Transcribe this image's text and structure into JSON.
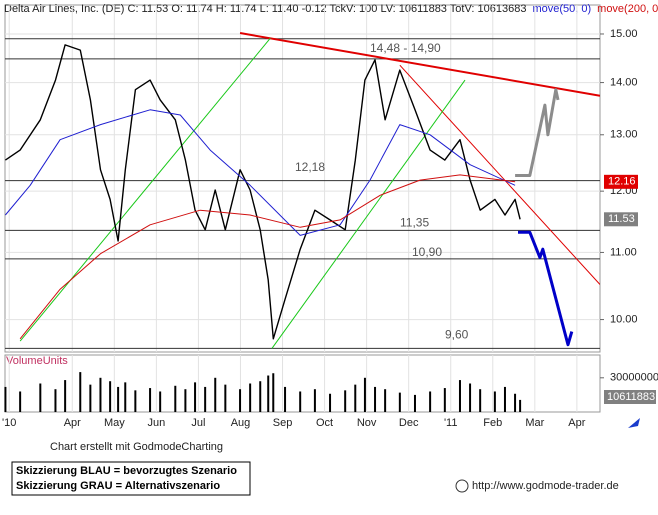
{
  "chart_data": [
    {
      "type": "line",
      "title": "Delta Air Lines, Inc. (DE)",
      "subtitle": "C: 11.53 O: 11.74 H: 11.74 L: 11.40 -0.12 TckV: 100 LV: 10611883 TotV: 10613683",
      "log_scale": true,
      "grid": true,
      "xlim": [
        -0.6,
        13.55
      ],
      "xticks": [
        {
          "value": -0.5,
          "label": "'10"
        },
        {
          "value": 1,
          "label": "Apr"
        },
        {
          "value": 2,
          "label": "May"
        },
        {
          "value": 3,
          "label": "Jun"
        },
        {
          "value": 4,
          "label": "Jul"
        },
        {
          "value": 5,
          "label": "Aug"
        },
        {
          "value": 6,
          "label": "Sep"
        },
        {
          "value": 7,
          "label": "Oct"
        },
        {
          "value": 8,
          "label": "Nov"
        },
        {
          "value": 9,
          "label": "Dec"
        },
        {
          "value": 10,
          "label": "'11"
        },
        {
          "value": 11,
          "label": "Feb"
        },
        {
          "value": 12,
          "label": "Mar"
        },
        {
          "value": 13,
          "label": "Apr"
        }
      ],
      "ylim": [
        9.55,
        15.63
      ],
      "yticks": [
        {
          "value": 10,
          "label": "10.00"
        },
        {
          "value": 11,
          "label": "11.00"
        },
        {
          "value": 12,
          "label": "12.00"
        },
        {
          "value": 13,
          "label": "13.00"
        },
        {
          "value": 14,
          "label": "14.00"
        },
        {
          "value": 15,
          "label": "15.00"
        }
      ],
      "series": [
        {
          "color": "#000000",
          "x": [
            -0.59,
            -0.24,
            0.24,
            0.6,
            0.83,
            1.19,
            1.43,
            1.67,
            1.9,
            2.09,
            2.26,
            2.5,
            2.85,
            3.09,
            3.45,
            3.69,
            3.92,
            4.16,
            4.4,
            4.64,
            4.99,
            5.23,
            5.47,
            5.66,
            5.78,
            6.06,
            6.42,
            6.77,
            7.13,
            7.49,
            7.73,
            7.96,
            8.2,
            8.44,
            8.79,
            9.15,
            9.51,
            9.86,
            10.22,
            10.46,
            10.7,
            11.05,
            11.29,
            11.53,
            11.65
          ],
          "values": [
            12.54,
            12.72,
            13.28,
            14.05,
            14.77,
            14.66,
            13.66,
            12.37,
            11.86,
            11.18,
            12.37,
            13.86,
            14.05,
            13.66,
            13.28,
            12.54,
            11.68,
            11.36,
            12.02,
            11.36,
            12.37,
            12.02,
            11.36,
            10.58,
            9.73,
            10.29,
            11.05,
            11.68,
            11.52,
            11.36,
            12.54,
            14.05,
            14.46,
            13.28,
            14.25,
            13.47,
            12.72,
            12.54,
            12.91,
            12.19,
            11.68,
            11.86,
            11.6,
            11.86,
            11.53
          ]
        },
        {
          "name": "move(50, 0)",
          "color": "#1f1fd0",
          "x": [
            -0.59,
            0,
            0.71,
            1.67,
            2.85,
            3.57,
            4.28,
            5.23,
            6.42,
            7.37,
            8.08,
            8.79,
            9.51,
            10.46,
            11.53
          ],
          "values": [
            11.6,
            12.1,
            12.91,
            13.19,
            13.47,
            13.37,
            12.72,
            12.1,
            11.27,
            11.44,
            12.19,
            13.19,
            13.0,
            12.46,
            12.1
          ]
        },
        {
          "name": "move(200, 0)",
          "color": "#d01010",
          "x": [
            -0.24,
            0.71,
            1.67,
            2.85,
            4.04,
            5.23,
            6.42,
            7.37,
            8.32,
            9.27,
            10.22,
            11.53
          ],
          "values": [
            9.73,
            10.44,
            10.98,
            11.44,
            11.68,
            11.6,
            11.4,
            11.52,
            11.93,
            12.19,
            12.28,
            12.16
          ]
        },
        {
          "name": "Skizzierung BLAU = bevorzugtes Szenario",
          "color": "#0000c8",
          "x": [
            11.6,
            11.88,
            12.12,
            12.19,
            12.79,
            12.88
          ],
          "values": [
            11.32,
            11.32,
            10.92,
            11.05,
            9.65,
            9.83
          ]
        },
        {
          "name": "Skizzierung GRAU = Alternativszenario",
          "color": "#8c8c8c",
          "x": [
            11.53,
            11.88,
            12.24,
            12.31,
            12.5,
            12.55
          ],
          "values": [
            12.27,
            12.27,
            13.56,
            13.0,
            13.86,
            13.66
          ]
        }
      ],
      "trendlines": [
        {
          "color": "#e00000",
          "x": [
            4.99,
            13.55
          ],
          "values": [
            15.02,
            13.74
          ]
        },
        {
          "color": "#e00000",
          "x": [
            8.79,
            13.55
          ],
          "values": [
            14.35,
            10.51
          ]
        },
        {
          "color": "#19c819",
          "x": [
            -0.24,
            5.71
          ],
          "values": [
            9.7,
            14.91
          ]
        },
        {
          "color": "#19c819",
          "x": [
            5.75,
            10.34
          ],
          "values": [
            9.6,
            14.05
          ]
        }
      ],
      "levels": [
        {
          "values": [
            14.48,
            14.9
          ],
          "label": "14,48 - 14,90"
        },
        {
          "values": [
            12.18
          ],
          "label": "12,18"
        },
        {
          "values": [
            11.35
          ],
          "label": "11,35"
        },
        {
          "values": [
            10.9
          ],
          "label": "10,90"
        },
        {
          "values": [
            9.6
          ],
          "label": "9,60"
        }
      ]
    },
    {
      "type": "bar",
      "title": "VolumeUnits",
      "color": "#000000",
      "ylim": [
        0,
        50000000
      ],
      "yticks": [
        30000000
      ],
      "x": [
        -0.59,
        -0.24,
        0.24,
        0.6,
        0.83,
        1.19,
        1.43,
        1.67,
        1.9,
        2.09,
        2.26,
        2.5,
        2.85,
        3.09,
        3.45,
        3.69,
        3.92,
        4.16,
        4.4,
        4.64,
        4.99,
        5.23,
        5.47,
        5.66,
        5.78,
        6.06,
        6.42,
        6.77,
        7.13,
        7.49,
        7.73,
        7.96,
        8.2,
        8.44,
        8.79,
        9.15,
        9.51,
        9.86,
        10.22,
        10.46,
        10.7,
        11.05,
        11.29,
        11.53,
        11.65
      ],
      "values": [
        22000000,
        18000000,
        25000000,
        20000000,
        28000000,
        35000000,
        24000000,
        30000000,
        27000000,
        22000000,
        26000000,
        19000000,
        21000000,
        18000000,
        23000000,
        20000000,
        26000000,
        22000000,
        30000000,
        24000000,
        20000000,
        25000000,
        27000000,
        32000000,
        34000000,
        22000000,
        18000000,
        20000000,
        16000000,
        19000000,
        24000000,
        30000000,
        22000000,
        20000000,
        17000000,
        15000000,
        18000000,
        21000000,
        28000000,
        25000000,
        20000000,
        18000000,
        22000000,
        16000000,
        10611883
      ]
    }
  ],
  "footer": {
    "credit": "Chart erstellt mit GodmodeCharting",
    "url": "http://www.godmode-trader.de"
  }
}
